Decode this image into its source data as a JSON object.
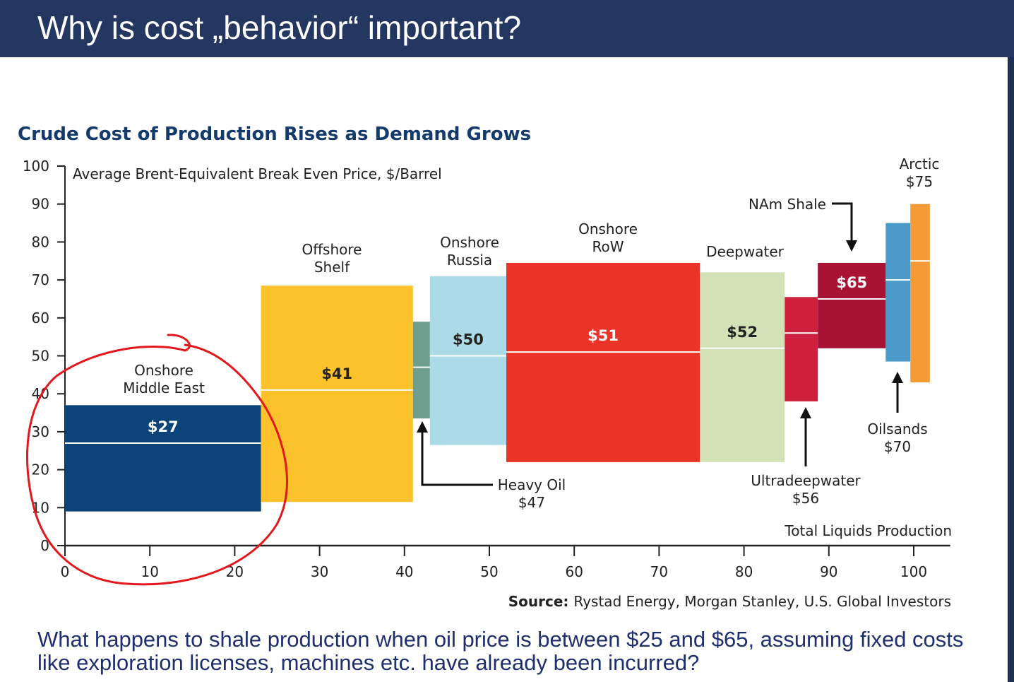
{
  "slide": {
    "title": "Why is cost „behavior“ important?",
    "question": "What happens to shale production when oil price is between $25 and $65, assuming fixed costs like exploration licenses, machines etc. have already been incurred?"
  },
  "chart_data": {
    "type": "bar",
    "subtype": "variable-width cost curve (range bars with average marker)",
    "title": "Crude Cost of Production Rises as Demand Grows",
    "ylabel": "Average Brent-Equivalent Break Even Price, $/Barrel",
    "xlabel": "Total Liquids Production",
    "source_bold": "Source:",
    "source": "Rystad Energy, Morgan Stanley, U.S. Global Investors",
    "xlim": [
      0,
      105
    ],
    "ylim": [
      0,
      100
    ],
    "xticks": [
      0,
      10,
      20,
      30,
      40,
      50,
      60,
      70,
      80,
      90,
      100
    ],
    "yticks": [
      0,
      10,
      20,
      30,
      40,
      50,
      60,
      70,
      80,
      90,
      100
    ],
    "categories": [
      {
        "name": "Onshore Middle East",
        "label_lines": [
          "Onshore",
          "Middle East"
        ],
        "value_label": "$27",
        "x_start": 0,
        "x_end": 23.1,
        "low": 9,
        "high": 37,
        "avg": 27,
        "color": "#0a4478",
        "value_color": "#ffffff"
      },
      {
        "name": "Offshore Shelf",
        "label_lines": [
          "Offshore",
          "Shelf"
        ],
        "value_label": "$41",
        "x_start": 23.1,
        "x_end": 41,
        "low": 11.5,
        "high": 68.5,
        "avg": 41,
        "color": "#fcc22b",
        "value_color": "#222222"
      },
      {
        "name": "Heavy Oil",
        "label_lines": [
          "Heavy Oil",
          "$47"
        ],
        "value_label": "",
        "x_start": 41,
        "x_end": 43,
        "low": 33.5,
        "high": 59,
        "avg": 47,
        "color": "#6e9e8e",
        "value_color": "#ffffff"
      },
      {
        "name": "Onshore Russia",
        "label_lines": [
          "Onshore",
          "Russia"
        ],
        "value_label": "$50",
        "x_start": 43,
        "x_end": 52,
        "low": 26.5,
        "high": 71,
        "avg": 50,
        "color": "#acdbe8",
        "value_color": "#222222"
      },
      {
        "name": "Onshore RoW",
        "label_lines": [
          "Onshore",
          "RoW"
        ],
        "value_label": "$51",
        "x_start": 52,
        "x_end": 74.8,
        "low": 22,
        "high": 74.5,
        "avg": 51,
        "color": "#eb3328",
        "value_color": "#ffffff"
      },
      {
        "name": "Deepwater",
        "label_lines": [
          "Deepwater"
        ],
        "value_label": "$52",
        "x_start": 74.8,
        "x_end": 84.8,
        "low": 22,
        "high": 72,
        "avg": 52,
        "color": "#d2e2b6",
        "value_color": "#222222"
      },
      {
        "name": "Ultradeepwater",
        "label_lines": [
          "Ultradeepwater",
          "$56"
        ],
        "value_label": "",
        "x_start": 84.8,
        "x_end": 88.7,
        "low": 38,
        "high": 65.5,
        "avg": 56,
        "color": "#ce2140",
        "value_color": "#ffffff"
      },
      {
        "name": "NAm Shale",
        "label_lines": [
          "NAm Shale"
        ],
        "value_label": "$65",
        "x_start": 88.7,
        "x_end": 96.7,
        "low": 52,
        "high": 74.5,
        "avg": 65,
        "color": "#a81235",
        "value_color": "#ffffff"
      },
      {
        "name": "Oilsands",
        "label_lines": [
          "Oilsands",
          "$70"
        ],
        "value_label": "",
        "x_start": 96.7,
        "x_end": 99.6,
        "low": 48.5,
        "high": 85,
        "avg": 70,
        "color": "#4c9ac7",
        "value_color": "#ffffff"
      },
      {
        "name": "Arctic",
        "label_lines": [
          "Arctic",
          "$75"
        ],
        "value_label": "",
        "x_start": 99.6,
        "x_end": 101.9,
        "low": 43,
        "high": 90,
        "avg": 75,
        "color": "#f49b36",
        "value_color": "#ffffff"
      }
    ],
    "annotation": {
      "type": "hand-drawn circle",
      "target": "Onshore Middle East",
      "color": "#e3171c"
    }
  }
}
